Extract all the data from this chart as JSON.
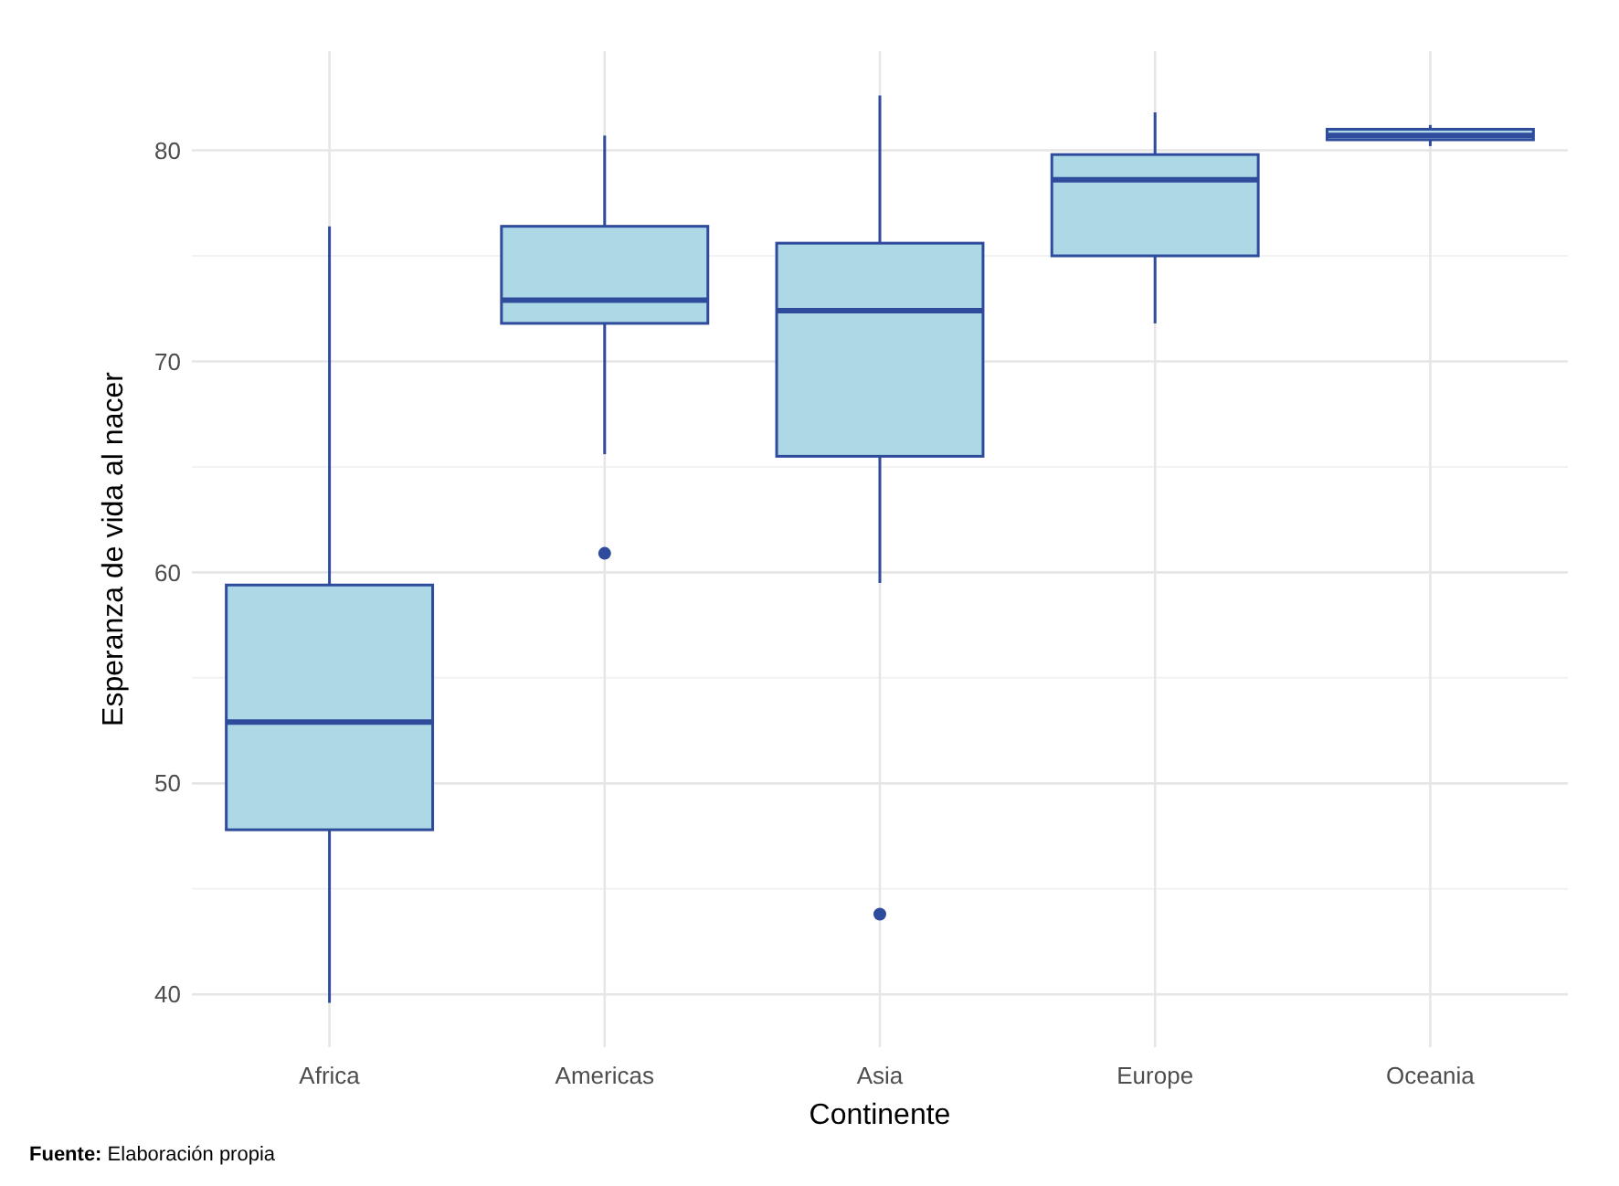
{
  "chart_data": {
    "type": "box",
    "xlabel": "Continente",
    "ylabel": "Esperanza de vida al nacer",
    "categories": [
      "Africa",
      "Americas",
      "Asia",
      "Europe",
      "Oceania"
    ],
    "series": [
      {
        "color": "#2f4b9c",
        "colors": [
          "#add8e6",
          "#add8e6",
          "#add8e6",
          "#add8e6",
          "#add8e6"
        ],
        "boxes": [
          {
            "low": 39.6,
            "q1": 47.8,
            "median": 52.9,
            "q3": 59.4,
            "high": 76.4
          },
          {
            "low": 65.6,
            "q1": 71.8,
            "median": 72.9,
            "q3": 76.4,
            "high": 80.7,
            "outliers": [
              60.9
            ]
          },
          {
            "low": 59.5,
            "q1": 65.5,
            "median": 72.4,
            "q3": 75.6,
            "high": 82.6,
            "outliers": [
              43.8
            ]
          },
          {
            "low": 71.8,
            "q1": 75.0,
            "median": 78.6,
            "q3": 79.8,
            "high": 81.8
          },
          {
            "low": 80.2,
            "q1": 80.5,
            "median": 80.7,
            "q3": 81.0,
            "high": 81.2
          }
        ]
      }
    ],
    "ylim": [
      37.5,
      84.7
    ],
    "yticks": [
      40,
      {
        "value": 45,
        "label": null
      },
      50,
      {
        "value": 55,
        "label": null
      },
      60,
      {
        "value": 65,
        "label": null
      },
      70,
      {
        "value": 75,
        "label": null
      },
      80
    ],
    "grid": true,
    "annotations": [
      "Fuente: Elaboración propia"
    ]
  }
}
